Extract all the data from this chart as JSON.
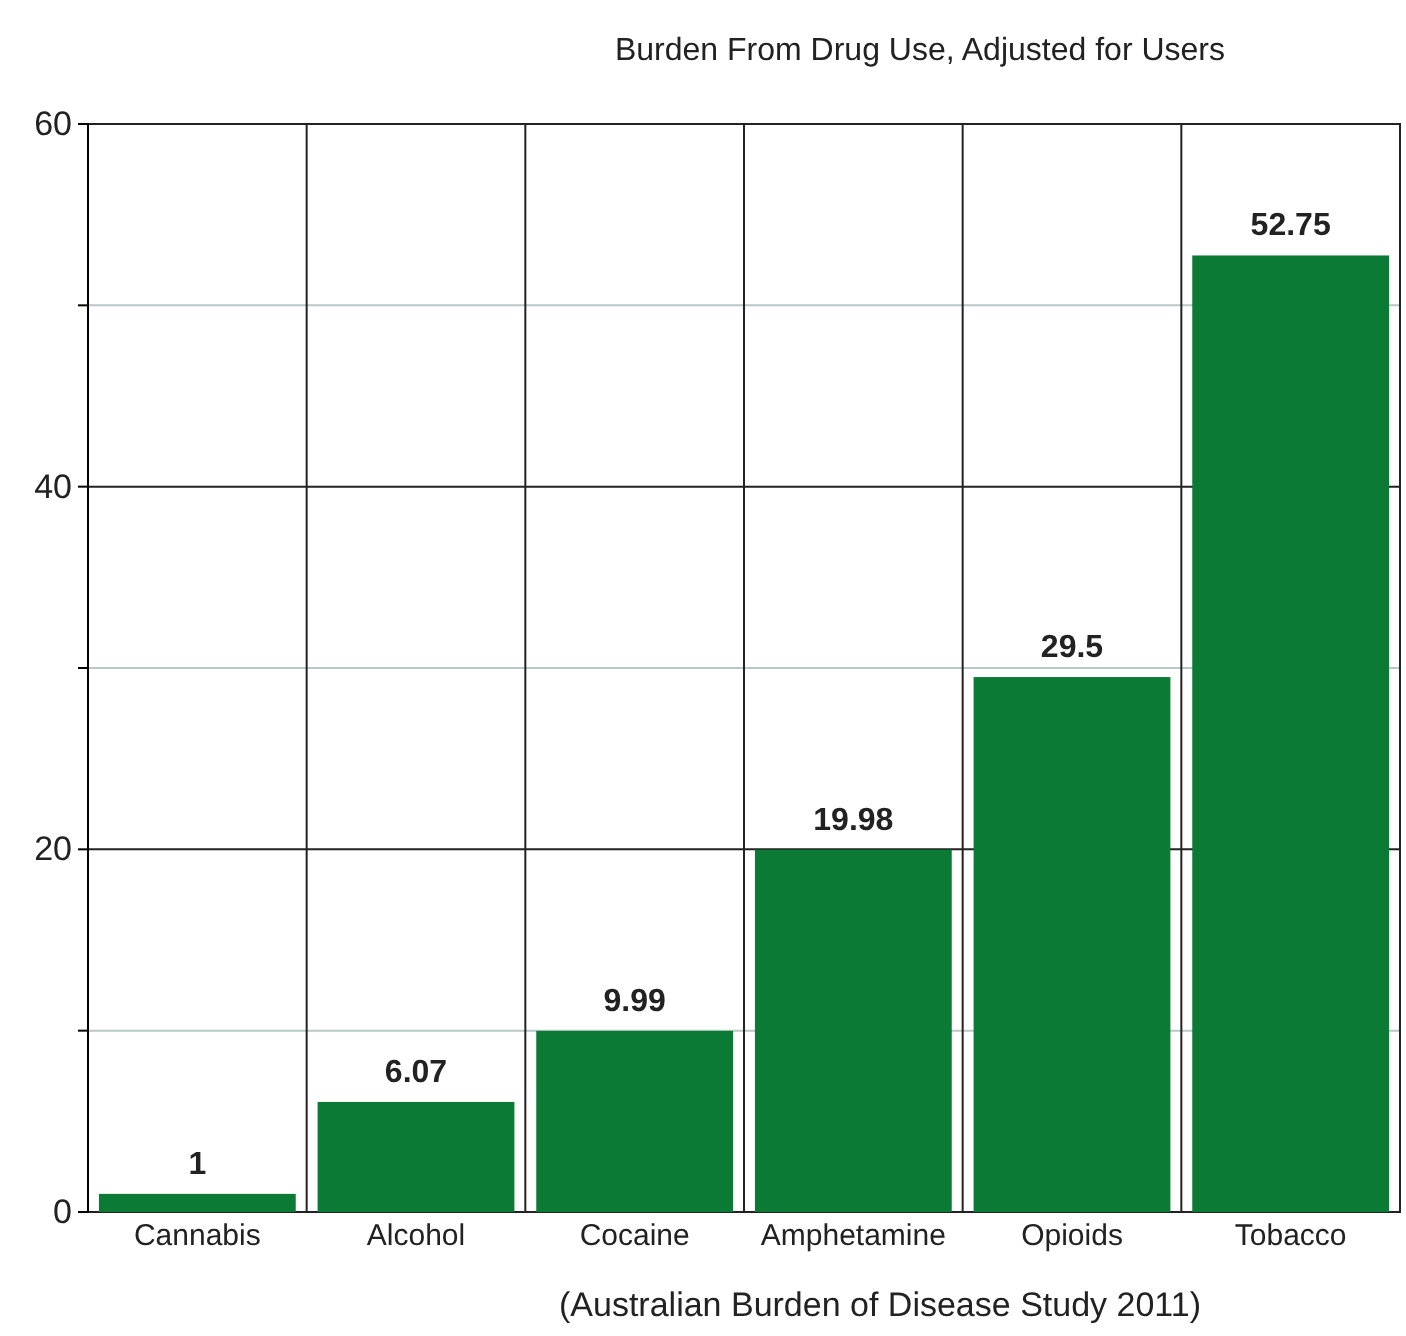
{
  "chart_data": {
    "type": "bar",
    "title": "Burden From Drug Use, Adjusted for Users",
    "categories": [
      "Cannabis",
      "Alcohol",
      "Cocaine",
      "Amphetamine",
      "Opioids",
      "Tobacco"
    ],
    "values": [
      1,
      6.07,
      9.99,
      19.98,
      29.5,
      52.75
    ],
    "color": "#0b7a34",
    "ylim": [
      0,
      60
    ],
    "yticks": [
      0,
      {
        "value": 10,
        "label": null
      },
      20,
      {
        "value": 30,
        "label": null
      },
      40,
      {
        "value": 50,
        "label": null
      },
      60
    ],
    "grid": true,
    "data_labels": true,
    "annotations": [
      "(Australian Burden of Disease Study 2011)"
    ]
  }
}
